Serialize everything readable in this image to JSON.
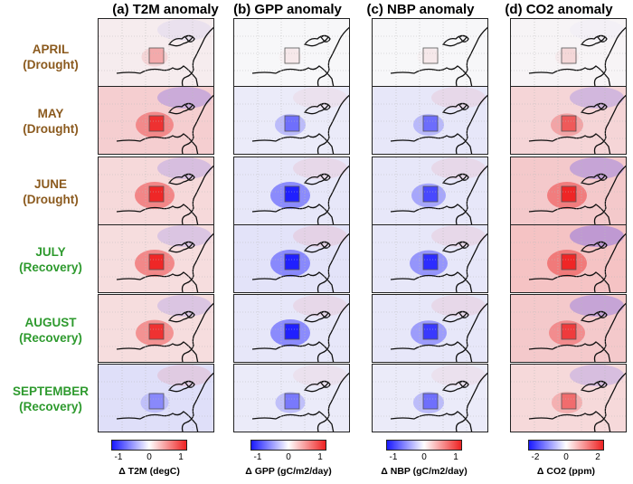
{
  "columns": [
    {
      "title": "(a) T2M anomaly",
      "unit_label": "Δ T2M (degC)",
      "ticks": [
        "-1",
        "0",
        "1"
      ]
    },
    {
      "title": "(b) GPP anomaly",
      "unit_label": "Δ GPP (gC/m2/day)",
      "ticks": [
        "-1",
        "0",
        "1"
      ]
    },
    {
      "title": "(c) NBP anomaly",
      "unit_label": "Δ NBP (gC/m2/day)",
      "ticks": [
        "-1",
        "0",
        "1"
      ]
    },
    {
      "title": "(d) CO2 anomaly",
      "unit_label": "Δ CO2 (ppm)",
      "ticks": [
        "-2",
        "0",
        "2"
      ]
    }
  ],
  "rows": [
    {
      "month": "APRIL",
      "phase": "(Drought)"
    },
    {
      "month": "MAY",
      "phase": "(Drought)"
    },
    {
      "month": "JUNE",
      "phase": "(Drought)"
    },
    {
      "month": "JULY",
      "phase": "(Recovery)"
    },
    {
      "month": "AUGUST",
      "phase": "(Recovery)"
    },
    {
      "month": "SEPTEMBER",
      "phase": "(Recovery)"
    }
  ],
  "colors": {
    "drought": "#8b5a1e",
    "recovery": "#2e9a2e",
    "negative": "#1a1aff",
    "positive": "#ee2222"
  }
}
